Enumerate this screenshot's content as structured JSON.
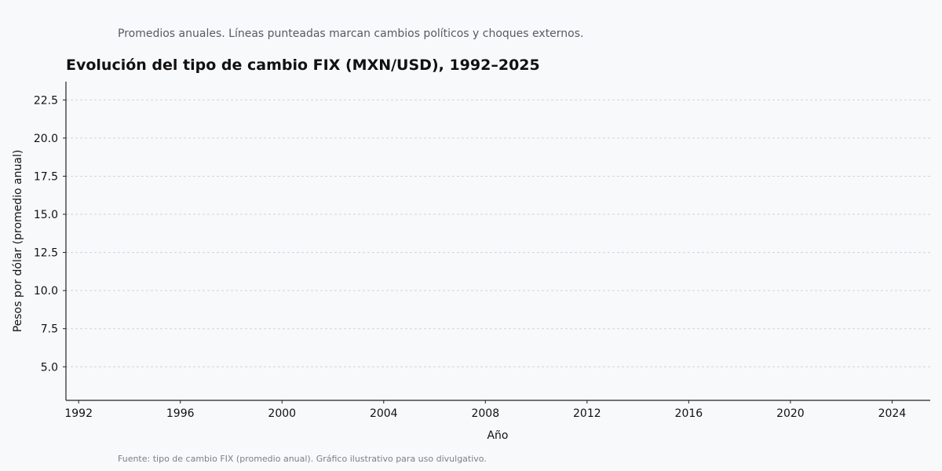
{
  "subtitle": "Promedios anuales. Líneas punteadas marcan cambios políticos y choques externos.",
  "source": "Fuente: tipo de cambio FIX (promedio anual). Gráfico ilustrativo para uso divulgativo.",
  "chart_data": {
    "type": "line",
    "title": "Evolución del tipo de cambio FIX (MXN/USD), 1992–2025",
    "xlabel": "Año",
    "ylabel": "Pesos por dólar (promedio anual)",
    "xlim": [
      1991.5,
      2025.5
    ],
    "ylim": [
      2.8,
      23.7
    ],
    "xticks": [
      1992,
      1996,
      2000,
      2004,
      2008,
      2012,
      2016,
      2020,
      2024
    ],
    "yticks": [
      5.0,
      7.5,
      10.0,
      12.5,
      15.0,
      17.5,
      20.0,
      22.5
    ],
    "ytick_labels": [
      "5.0",
      "7.5",
      "10.0",
      "12.5",
      "15.0",
      "17.5",
      "20.0",
      "22.5"
    ],
    "grid": "y-dashed",
    "series": [],
    "colors": {
      "axis": "#222222",
      "grid": "#d0d4da"
    }
  }
}
